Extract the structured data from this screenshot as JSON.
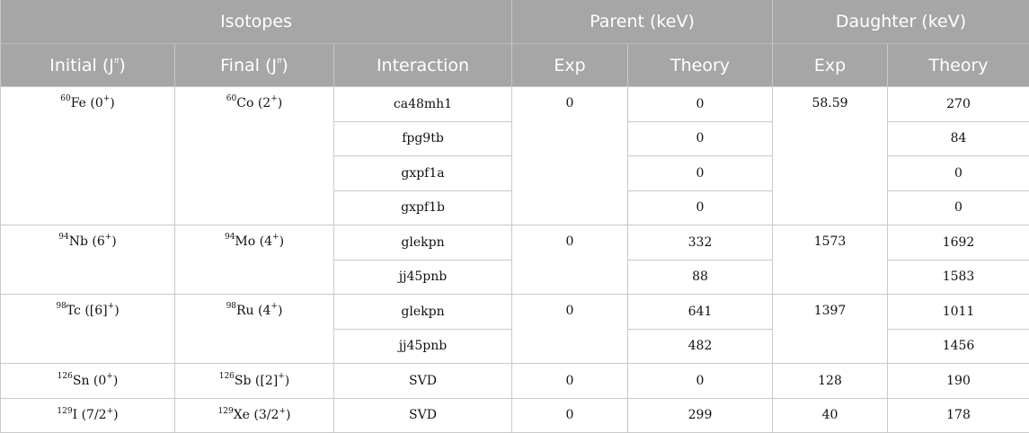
{
  "header": {
    "isotopes": "Isotopes",
    "parent": "Parent (keV)",
    "daughter": "Daughter (keV)",
    "initial": "Initial (J",
    "final": "Final (J",
    "pi": "π",
    "close_paren": ")",
    "interaction": "Interaction",
    "exp": "Exp",
    "theory": "Theory"
  },
  "rows": [
    {
      "initial": {
        "mass": "60",
        "el": "Fe",
        "spin": " (0",
        "parity": "+",
        "end": ")"
      },
      "final": {
        "mass": "60",
        "el": "Co",
        "spin": " (2",
        "parity": "+",
        "end": ")"
      },
      "parent_exp": "0",
      "daughter_exp": "58.59",
      "entries": [
        {
          "interaction": "ca48mh1",
          "parent_theory": "0",
          "daughter_theory": "270"
        },
        {
          "interaction": "fpg9tb",
          "parent_theory": "0",
          "daughter_theory": "84"
        },
        {
          "interaction": "gxpf1a",
          "parent_theory": "0",
          "daughter_theory": "0"
        },
        {
          "interaction": "gxpf1b",
          "parent_theory": "0",
          "daughter_theory": "0"
        }
      ]
    },
    {
      "initial": {
        "mass": "94",
        "el": "Nb",
        "spin": " (6",
        "parity": "+",
        "end": ")"
      },
      "final": {
        "mass": "94",
        "el": "Mo",
        "spin": " (4",
        "parity": "+",
        "end": ")"
      },
      "parent_exp": "0",
      "daughter_exp": "1573",
      "entries": [
        {
          "interaction": "glekpn",
          "parent_theory": "332",
          "daughter_theory": "1692"
        },
        {
          "interaction": "jj45pnb",
          "parent_theory": "88",
          "daughter_theory": "1583"
        }
      ]
    },
    {
      "initial": {
        "mass": "98",
        "el": "Tc",
        "spin": " ([6]",
        "parity": "+",
        "end": ")"
      },
      "final": {
        "mass": "98",
        "el": "Ru",
        "spin": " (4",
        "parity": "+",
        "end": ")"
      },
      "parent_exp": "0",
      "daughter_exp": "1397",
      "entries": [
        {
          "interaction": "glekpn",
          "parent_theory": "641",
          "daughter_theory": "1011"
        },
        {
          "interaction": "jj45pnb",
          "parent_theory": "482",
          "daughter_theory": "1456"
        }
      ]
    },
    {
      "initial": {
        "mass": "126",
        "el": "Sn",
        "spin": " (0",
        "parity": "+",
        "end": ")"
      },
      "final": {
        "mass": "126",
        "el": "Sb",
        "spin": " ([2]",
        "parity": "+",
        "end": ")"
      },
      "parent_exp": "0",
      "daughter_exp": "128",
      "entries": [
        {
          "interaction": "SVD",
          "parent_theory": "0",
          "daughter_theory": "190"
        }
      ]
    },
    {
      "initial": {
        "mass": "129",
        "el": "I",
        "spin": " (7/2",
        "parity": "+",
        "end": ")"
      },
      "final": {
        "mass": "129",
        "el": "Xe",
        "spin": " (3/2",
        "parity": "+",
        "end": ")"
      },
      "parent_exp": "0",
      "daughter_exp": "40",
      "entries": [
        {
          "interaction": "SVD",
          "parent_theory": "299",
          "daughter_theory": "178"
        }
      ]
    }
  ]
}
